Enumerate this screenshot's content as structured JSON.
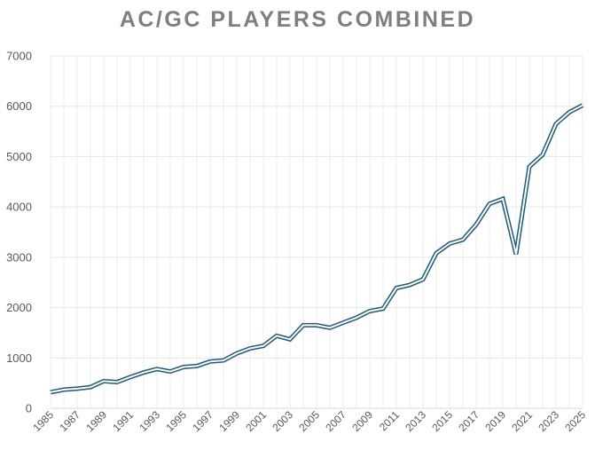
{
  "chart_data": {
    "type": "line",
    "title": "AC/GC PLAYERS COMBINED",
    "xlabel": "",
    "ylabel": "",
    "ylim": [
      0,
      7000
    ],
    "yticks": [
      0,
      1000,
      2000,
      3000,
      4000,
      5000,
      6000,
      7000
    ],
    "xlim": [
      1985,
      2025
    ],
    "xticks": [
      1985,
      1987,
      1989,
      1991,
      1993,
      1995,
      1997,
      1999,
      2001,
      2003,
      2005,
      2007,
      2009,
      2011,
      2013,
      2015,
      2017,
      2019,
      2021,
      2023,
      2025
    ],
    "grid": true,
    "legend": "none",
    "line_color": "#1f5b78",
    "x": [
      1985,
      1986,
      1987,
      1988,
      1989,
      1990,
      1991,
      1992,
      1993,
      1994,
      1995,
      1996,
      1997,
      1998,
      1999,
      2000,
      2001,
      2002,
      2003,
      2004,
      2005,
      2006,
      2007,
      2008,
      2009,
      2010,
      2011,
      2012,
      2013,
      2014,
      2015,
      2016,
      2017,
      2018,
      2019,
      2020,
      2021,
      2022,
      2023,
      2024,
      2025
    ],
    "y": [
      320,
      370,
      390,
      420,
      540,
      520,
      620,
      710,
      780,
      730,
      820,
      840,
      930,
      950,
      1090,
      1190,
      1240,
      1440,
      1370,
      1650,
      1650,
      1600,
      1700,
      1800,
      1930,
      1980,
      2390,
      2450,
      2560,
      3080,
      3270,
      3350,
      3650,
      4060,
      4160,
      3060,
      4800,
      5040,
      5650,
      5880,
      6020
    ]
  }
}
